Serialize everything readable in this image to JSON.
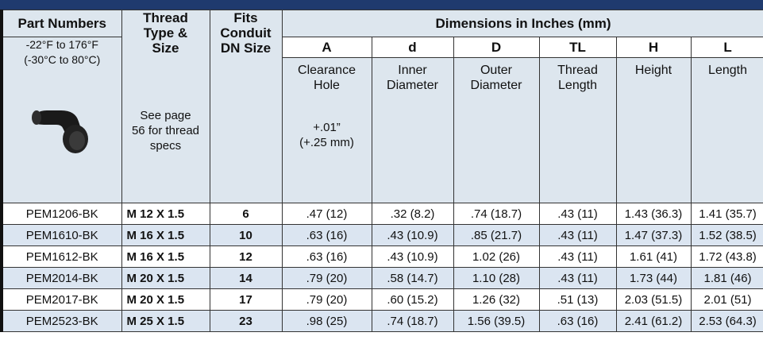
{
  "header": {
    "part_numbers": "Part Numbers",
    "thread": [
      "Thread",
      "Type &",
      "Size"
    ],
    "fits": [
      "Fits",
      "Conduit",
      "DN Size"
    ],
    "dimensions": "Dimensions in Inches (mm)"
  },
  "temperature": [
    "-22°F to 176°F",
    "(-30°C to 80°C)"
  ],
  "thread_note": [
    "See page",
    "56 for thread",
    "specs"
  ],
  "dimension_columns": [
    {
      "symbol": "A",
      "description": [
        "Clearance",
        "Hole"
      ]
    },
    {
      "symbol": "d",
      "description": [
        "Inner",
        "Diameter"
      ]
    },
    {
      "symbol": "D",
      "description": [
        "Outer",
        "Diameter"
      ]
    },
    {
      "symbol": "TL",
      "description": [
        "Thread",
        "Length"
      ]
    },
    {
      "symbol": "H",
      "description": [
        "Height"
      ]
    },
    {
      "symbol": "L",
      "description": [
        "Length"
      ]
    }
  ],
  "tolerance": [
    "+.01”",
    "(+.25 mm)"
  ],
  "rows": [
    [
      "PEM1206-BK",
      "M 12 X 1.5",
      "6",
      ".47 (12)",
      ".32 (8.2)",
      ".74 (18.7)",
      ".43 (11)",
      "1.43 (36.3)",
      "1.41 (35.7)"
    ],
    [
      "PEM1610-BK",
      "M 16 X 1.5",
      "10",
      ".63 (16)",
      ".43 (10.9)",
      ".85 (21.7)",
      ".43 (11)",
      "1.47 (37.3)",
      "1.52 (38.5)"
    ],
    [
      "PEM1612-BK",
      "M 16 X 1.5",
      "12",
      ".63 (16)",
      ".43 (10.9)",
      "1.02 (26)",
      ".43 (11)",
      "1.61 (41)",
      "1.72 (43.8)"
    ],
    [
      "PEM2014-BK",
      "M 20 X 1.5",
      "14",
      ".79 (20)",
      ".58 (14.7)",
      "1.10 (28)",
      ".43 (11)",
      "1.73 (44)",
      "1.81 (46)"
    ],
    [
      "PEM2017-BK",
      "M 20 X 1.5",
      "17",
      ".79 (20)",
      ".60 (15.2)",
      "1.26 (32)",
      ".51 (13)",
      "2.03 (51.5)",
      "2.01 (51)"
    ],
    [
      "PEM2523-BK",
      "M 25 X 1.5",
      "23",
      ".98 (25)",
      ".74 (18.7)",
      "1.56 (39.5)",
      ".63 (16)",
      "2.41 (61.2)",
      "2.53 (64.3)"
    ]
  ]
}
